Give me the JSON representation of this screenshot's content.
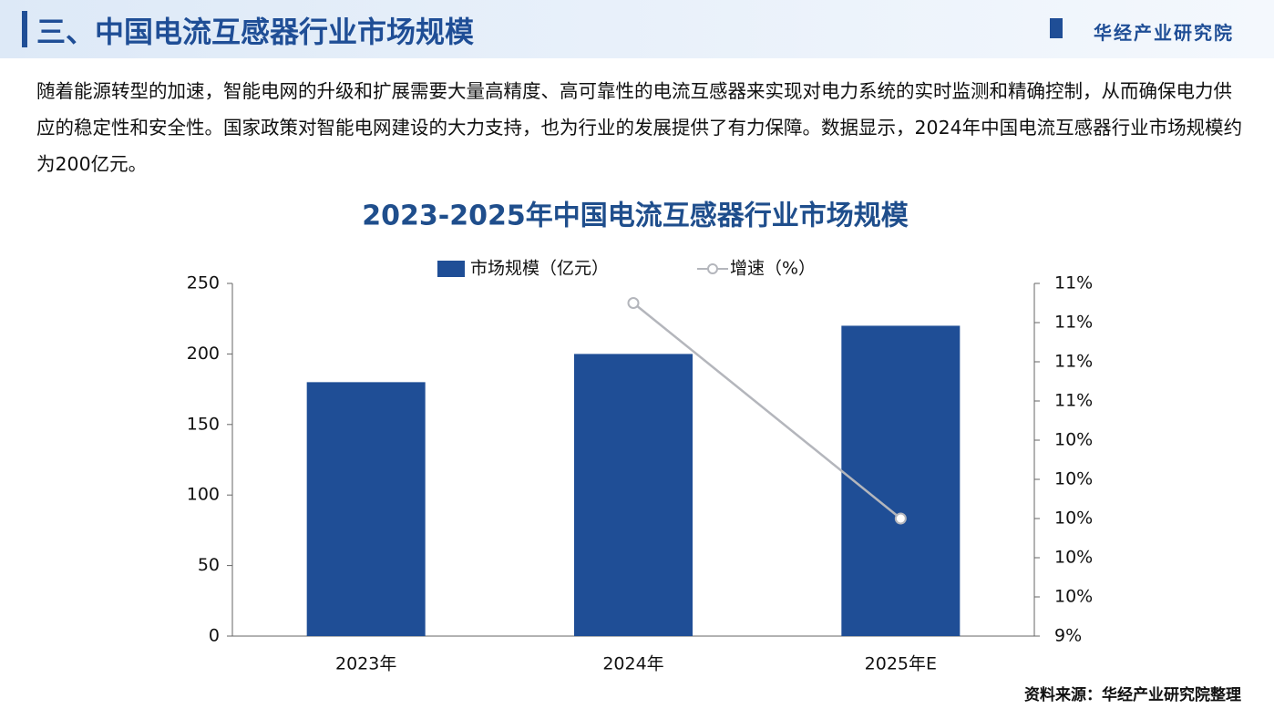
{
  "header": {
    "title": "三、中国电流互感器行业市场规模",
    "brand": "华经产业研究院"
  },
  "intro": "随着能源转型的加速，智能电网的升级和扩展需要大量高精度、高可靠性的电流互感器来实现对电力系统的实时监测和精确控制，从而确保电力供应的稳定性和安全性。国家政策对智能电网建设的大力支持，也为行业的发展提供了有力保障。数据显示，2024年中国电流互感器行业市场规模约为200亿元。",
  "chart_data": {
    "type": "bar",
    "title": "2023-2025年中国电流互感器行业市场规模",
    "categories": [
      "2023年",
      "2024年",
      "2025年E"
    ],
    "series": [
      {
        "name": "市场规模（亿元）",
        "type": "bar",
        "color": "#1f4e96",
        "values": [
          180,
          200,
          220
        ]
      },
      {
        "name": "增速（%）",
        "type": "line",
        "axis": "y2",
        "color": "#b4b6bc",
        "values": [
          null,
          11.1,
          10.0
        ]
      }
    ],
    "ylim": [
      0,
      250
    ],
    "yticks": [
      0,
      50,
      100,
      150,
      200,
      250
    ],
    "y2lim": [
      9.4,
      11.2
    ],
    "y2ticks": [
      {
        "value": 9.4,
        "label": "9%"
      },
      {
        "value": 9.6,
        "label": "10%"
      },
      {
        "value": 9.8,
        "label": "10%"
      },
      {
        "value": 10.0,
        "label": "10%"
      },
      {
        "value": 10.2,
        "label": "10%"
      },
      {
        "value": 10.4,
        "label": "10%"
      },
      {
        "value": 10.6,
        "label": "11%"
      },
      {
        "value": 10.8,
        "label": "11%"
      },
      {
        "value": 11.0,
        "label": "11%"
      },
      {
        "value": 11.2,
        "label": "11%"
      }
    ],
    "legend": "top",
    "grid": false
  },
  "source": "资料来源：华经产业研究院整理"
}
